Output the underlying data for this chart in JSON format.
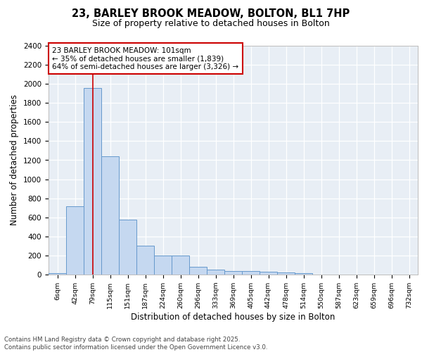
{
  "title_line1": "23, BARLEY BROOK MEADOW, BOLTON, BL1 7HP",
  "title_line2": "Size of property relative to detached houses in Bolton",
  "xlabel": "Distribution of detached houses by size in Bolton",
  "ylabel": "Number of detached properties",
  "categories": [
    "6sqm",
    "42sqm",
    "79sqm",
    "115sqm",
    "151sqm",
    "187sqm",
    "224sqm",
    "260sqm",
    "296sqm",
    "333sqm",
    "369sqm",
    "405sqm",
    "442sqm",
    "478sqm",
    "514sqm",
    "550sqm",
    "587sqm",
    "623sqm",
    "659sqm",
    "696sqm",
    "732sqm"
  ],
  "values": [
    15,
    715,
    1960,
    1240,
    575,
    305,
    200,
    200,
    80,
    50,
    40,
    40,
    30,
    20,
    15,
    0,
    0,
    0,
    0,
    0,
    0
  ],
  "bar_color": "#c5d8f0",
  "bar_edge_color": "#6699cc",
  "highlight_bar_index": 2,
  "highlight_color": "#cc0000",
  "ylim": [
    0,
    2400
  ],
  "yticks": [
    0,
    200,
    400,
    600,
    800,
    1000,
    1200,
    1400,
    1600,
    1800,
    2000,
    2200,
    2400
  ],
  "annotation_box_text": "23 BARLEY BROOK MEADOW: 101sqm\n← 35% of detached houses are smaller (1,839)\n64% of semi-detached houses are larger (3,326) →",
  "footnote": "Contains HM Land Registry data © Crown copyright and database right 2025.\nContains public sector information licensed under the Open Government Licence v3.0.",
  "background_color": "#ffffff",
  "plot_bg_color": "#e8eef5",
  "grid_color": "#ffffff"
}
